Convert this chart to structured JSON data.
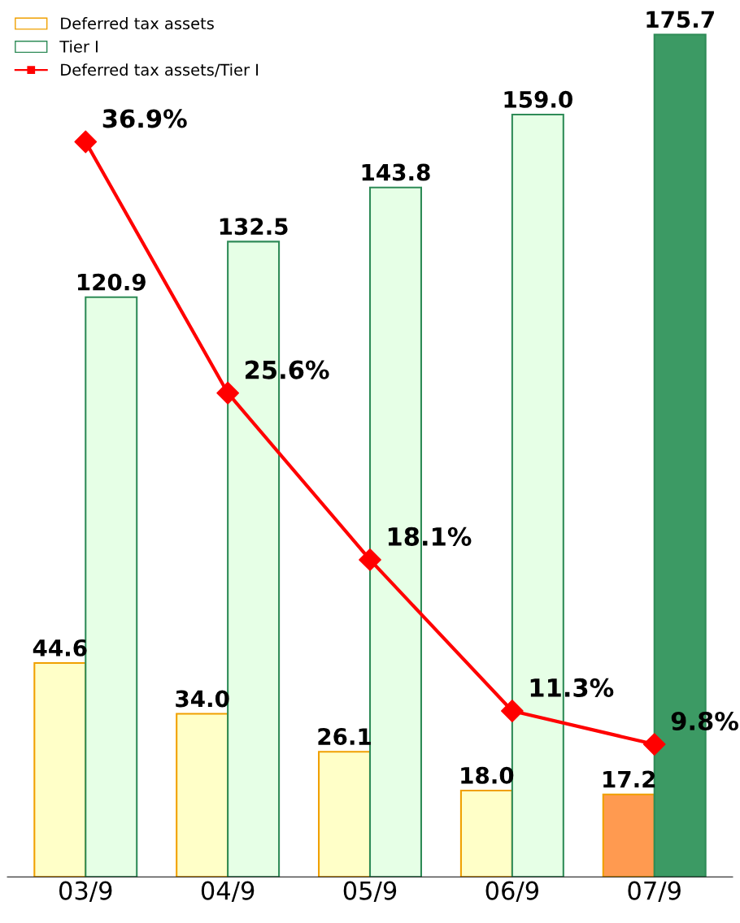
{
  "chart_data": {
    "type": "bar",
    "categories": [
      "03/9",
      "04/9",
      "05/9",
      "06/9",
      "07/9"
    ],
    "series": [
      {
        "name": "Deferred tax assets",
        "color": "#f0a000",
        "colors": [
          "#ffffc8",
          "#ffffc8",
          "#ffffc8",
          "#ffffc8",
          "#ff9a50"
        ],
        "values": [
          44.6,
          34.0,
          26.1,
          18.0,
          17.2
        ],
        "value_labels": [
          "44.6",
          "34.0",
          "26.1",
          "18.0",
          "17.2"
        ]
      },
      {
        "name": "Tier Ⅰ",
        "color": "#2e8b57",
        "colors": [
          "#e6ffe6",
          "#e6ffe6",
          "#e6ffe6",
          "#e6ffe6",
          "#3c9a64"
        ],
        "values": [
          120.9,
          132.5,
          143.8,
          159.0,
          175.7
        ],
        "value_labels": [
          "120.9",
          "132.5",
          "143.8",
          "159.0",
          "175.7"
        ]
      },
      {
        "name": "Deferred tax assets/Tier Ⅰ",
        "type": "line",
        "axis": "y2",
        "color": "#ff0000",
        "marker": "diamond",
        "values": [
          36.9,
          25.6,
          18.1,
          11.3,
          9.8
        ],
        "value_labels": [
          "36.9%",
          "25.6%",
          "18.1%",
          "11.3%",
          "9.8%"
        ]
      }
    ],
    "tick_labels": "x",
    "legend": "top left",
    "grid": false
  }
}
